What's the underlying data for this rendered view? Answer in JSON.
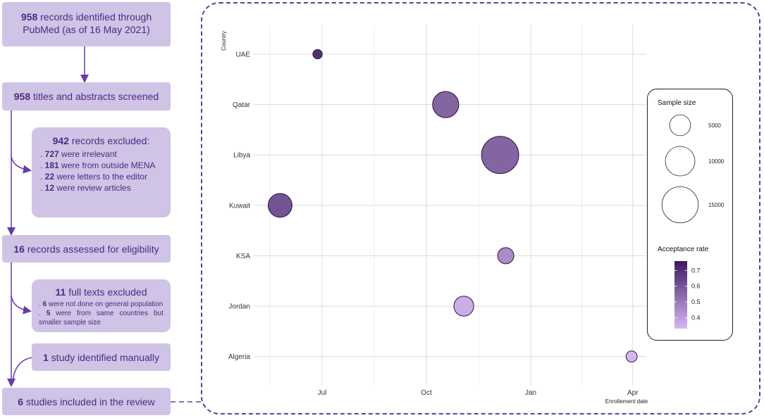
{
  "flow": {
    "b1": {
      "n": "958",
      "t": " records identified through",
      "t2": "PubMed (as of 16 May 2021)"
    },
    "b2": {
      "n": "958",
      "t": " titles and abstracts screened"
    },
    "e1": {
      "n": "942",
      "t": " records excluded:",
      "items": [
        {
          "n": "727",
          "t": " were irrelevant"
        },
        {
          "n": "181",
          "t": " were from outside MENA"
        },
        {
          "n": "22",
          "t": " were letters to the editor"
        },
        {
          "n": "12",
          "t": " were review articles"
        }
      ]
    },
    "b3": {
      "n": "16",
      "t": " records assessed for eligibility"
    },
    "e2": {
      "n": "11",
      "t": " full texts excluded",
      "items": [
        {
          "n": "6",
          "t": " were not done on general population"
        },
        {
          "n": "5",
          "t": " were from same countries but smaller sample size"
        }
      ]
    },
    "b4": {
      "n": "1",
      "t": " study identified manually"
    },
    "b5": {
      "n": "6",
      "t": " studies included in the review"
    }
  },
  "chart_data": {
    "type": "scatter",
    "ylabel": "Country",
    "xlabel": "Enrollement date",
    "categories": [
      "UAE",
      "Qatar",
      "Libya",
      "Kuwait",
      "KSA",
      "Jordan",
      "Algeria"
    ],
    "x_ticks": [
      "Jul",
      "Oct",
      "Jan",
      "Apr"
    ],
    "points": [
      {
        "country": "UAE",
        "date": "2020-06-27",
        "sample_size": 1000,
        "acceptance": 0.75
      },
      {
        "country": "Qatar",
        "date": "2020-10-18",
        "sample_size": 7800,
        "acceptance": 0.6
      },
      {
        "country": "Libya",
        "date": "2020-12-05",
        "sample_size": 15800,
        "acceptance": 0.6
      },
      {
        "country": "Kuwait",
        "date": "2020-05-25",
        "sample_size": 6500,
        "acceptance": 0.65
      },
      {
        "country": "KSA",
        "date": "2020-12-10",
        "sample_size": 3000,
        "acceptance": 0.48
      },
      {
        "country": "Jordan",
        "date": "2020-11-03",
        "sample_size": 4500,
        "acceptance": 0.38
      },
      {
        "country": "Algeria",
        "date": "2021-03-31",
        "sample_size": 1400,
        "acceptance": 0.35
      }
    ],
    "legend": {
      "size_title": "Sample size",
      "size_values": [
        5000,
        10000,
        15000
      ],
      "color_title": "Acceptance rate",
      "color_ticks": [
        0.7,
        0.6,
        0.5,
        0.4
      ],
      "color_range": [
        0.33,
        0.76
      ],
      "color_low": "#d6b8f4",
      "color_high": "#3d1860"
    }
  }
}
